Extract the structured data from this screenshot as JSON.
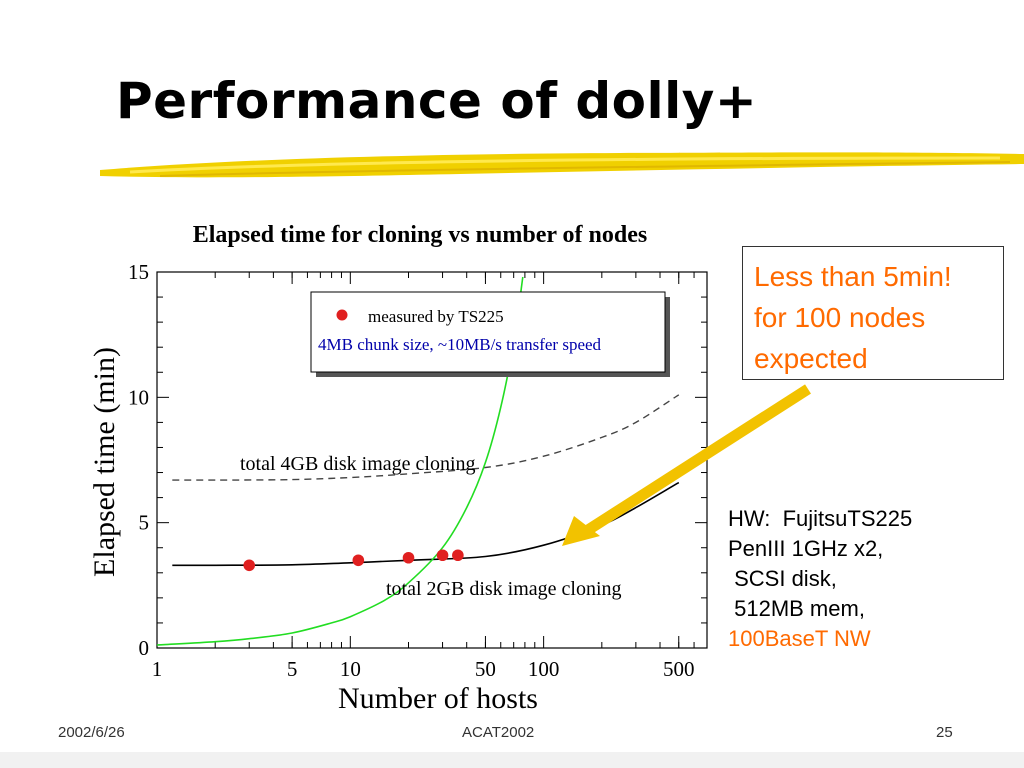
{
  "slide": {
    "title": "Performance of dolly+",
    "footer_date": "2002/6/26",
    "footer_center": "ACAT2002",
    "footer_page": "25"
  },
  "callout": {
    "lines": [
      "Less than 5min!",
      "for 100 nodes",
      "expected"
    ],
    "color": "#ff6a00"
  },
  "hw_notes": {
    "lines": [
      "HW:  FujitsuTS225",
      "PenIII 1GHz x2,",
      " SCSI disk,",
      " 512MB mem,"
    ],
    "accent_line": "100BaseT NW"
  },
  "chart_data": {
    "type": "scatter",
    "title": "Elapsed time for cloning vs number of nodes",
    "xlabel": "Number of hosts",
    "ylabel": "Elapsed time (min)",
    "x_scale": "log",
    "xlim": [
      1,
      700
    ],
    "ylim": [
      0,
      15
    ],
    "x_ticks": [
      1,
      5,
      10,
      50,
      100,
      500
    ],
    "y_ticks": [
      0,
      5,
      10,
      15
    ],
    "legend": {
      "marker_label": "measured by TS225",
      "note": "4MB chunk size,  ~10MB/s transfer speed",
      "placement": "top-center"
    },
    "colors": {
      "points": "#e02020",
      "exp_curve": "#22dd22",
      "fit": "#000000",
      "fit_4gb": "#444444",
      "note": "#0000aa"
    },
    "series": [
      {
        "name": "measured by TS225",
        "kind": "points",
        "x": [
          3,
          11,
          20,
          30,
          36
        ],
        "y": [
          3.3,
          3.5,
          3.6,
          3.7,
          3.7
        ]
      },
      {
        "kind": "line",
        "x": [
          1.2,
          2,
          5,
          10,
          20,
          50,
          100,
          200,
          300,
          500
        ],
        "y": [
          3.3,
          3.3,
          3.32,
          3.4,
          3.5,
          3.65,
          4.1,
          4.9,
          5.6,
          6.6
        ]
      },
      {
        "kind": "dashed",
        "x": [
          1.2,
          2,
          5,
          10,
          20,
          50,
          100,
          200,
          300,
          500
        ],
        "y": [
          6.7,
          6.7,
          6.72,
          6.8,
          6.95,
          7.2,
          7.65,
          8.4,
          9.0,
          10.1
        ]
      },
      {
        "kind": "exp",
        "x": [
          1,
          2,
          3,
          5,
          8,
          10,
          15,
          20,
          30,
          40,
          50,
          60,
          70,
          78
        ],
        "y": [
          0.12,
          0.25,
          0.37,
          0.6,
          1.0,
          1.25,
          1.9,
          2.6,
          4.0,
          5.6,
          7.4,
          9.6,
          12.2,
          14.8
        ]
      }
    ],
    "annotations": [
      "total 4GB disk image cloning",
      "total 2GB disk image cloning"
    ]
  }
}
